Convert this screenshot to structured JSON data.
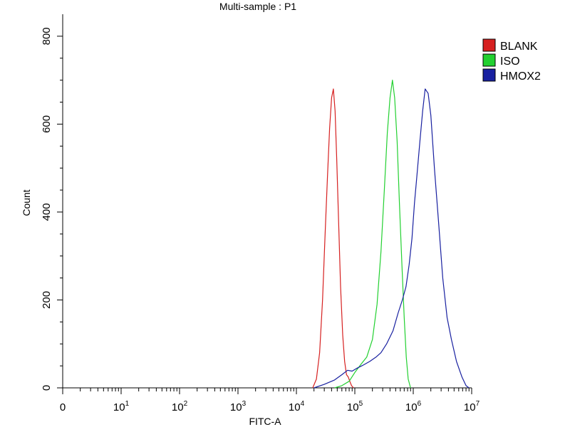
{
  "chart_data": {
    "type": "line",
    "title": "Multi-sample : P1",
    "xlabel": "FITC-A",
    "ylabel": "Count",
    "x_scale": "log",
    "xlim": [
      1,
      10000000
    ],
    "ylim": [
      0,
      850
    ],
    "yticks": [
      0,
      200,
      400,
      600,
      800
    ],
    "xticks": [
      {
        "value": 1,
        "base": "0",
        "exp": ""
      },
      {
        "value": 10,
        "base": "10",
        "exp": "1"
      },
      {
        "value": 100,
        "base": "10",
        "exp": "2"
      },
      {
        "value": 1000,
        "base": "10",
        "exp": "3"
      },
      {
        "value": 10000,
        "base": "10",
        "exp": "4"
      },
      {
        "value": 100000,
        "base": "10",
        "exp": "5"
      },
      {
        "value": 1000000,
        "base": "10",
        "exp": "6"
      },
      {
        "value": 10000000,
        "base": "10",
        "exp": "7"
      }
    ],
    "legend_position": "right",
    "series": [
      {
        "name": "BLANK",
        "color": "#d62020",
        "x": [
          19000,
          22000,
          25000,
          28000,
          31000,
          34000,
          37000,
          40000,
          43000,
          46000,
          49000,
          53000,
          57000,
          62000,
          67000,
          72000,
          77000,
          82000,
          88000,
          95000
        ],
        "y": [
          0,
          20,
          80,
          200,
          350,
          480,
          590,
          660,
          680,
          630,
          520,
          370,
          230,
          120,
          60,
          30,
          25,
          15,
          5,
          0
        ]
      },
      {
        "name": "ISO",
        "color": "#22d030",
        "x": [
          45000,
          60000,
          80000,
          100000,
          130000,
          160000,
          200000,
          240000,
          280000,
          320000,
          360000,
          400000,
          440000,
          480000,
          530000,
          580000,
          640000,
          700000,
          760000,
          820000,
          900000
        ],
        "y": [
          0,
          5,
          15,
          35,
          55,
          70,
          110,
          190,
          310,
          450,
          580,
          660,
          700,
          660,
          560,
          420,
          280,
          160,
          70,
          20,
          0
        ]
      },
      {
        "name": "HMOX2",
        "color": "#1820a0",
        "x": [
          20000,
          30000,
          45000,
          60000,
          75000,
          90000,
          110000,
          140000,
          180000,
          230000,
          280000,
          350000,
          450000,
          550000,
          650000,
          750000,
          850000,
          950000,
          1050000,
          1150000,
          1300000,
          1450000,
          1600000,
          1800000,
          2000000,
          2300000,
          2700000,
          3200000,
          3800000,
          4500000,
          5500000,
          6800000,
          8000000,
          9000000
        ],
        "y": [
          0,
          8,
          18,
          30,
          40,
          38,
          45,
          52,
          60,
          70,
          80,
          100,
          130,
          170,
          200,
          230,
          280,
          340,
          420,
          480,
          560,
          630,
          680,
          670,
          620,
          500,
          380,
          250,
          160,
          110,
          60,
          25,
          5,
          0
        ]
      }
    ]
  }
}
